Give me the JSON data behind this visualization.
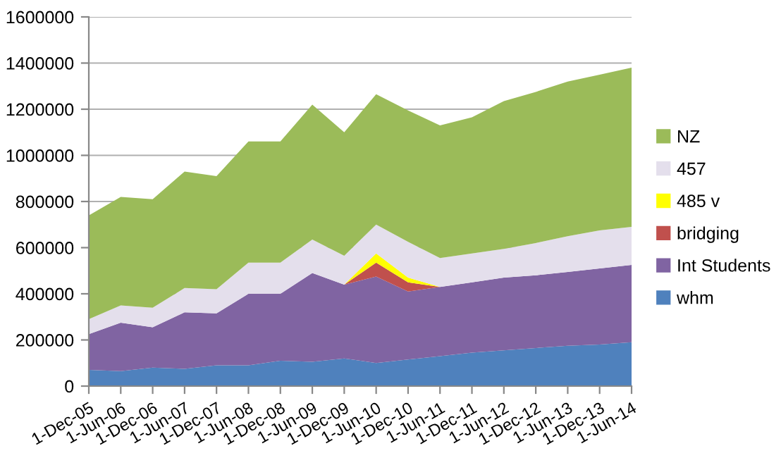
{
  "chart_data": {
    "type": "area",
    "stacked": true,
    "categories": [
      "1-Dec-05",
      "1-Jun-06",
      "1-Dec-06",
      "1-Jun-07",
      "1-Dec-07",
      "1-Jun-08",
      "1-Dec-08",
      "1-Jun-09",
      "1-Dec-09",
      "1-Jun-10",
      "1-Dec-10",
      "1-Jun-11",
      "1-Dec-11",
      "1-Jun-12",
      "1-Dec-12",
      "1-Jun-13",
      "1-Dec-13",
      "1-Jun-14"
    ],
    "series": [
      {
        "name": "whm",
        "color": "#4f81bd",
        "values": [
          70000,
          65000,
          80000,
          75000,
          90000,
          90000,
          110000,
          105000,
          120000,
          100000,
          115000,
          130000,
          145000,
          155000,
          165000,
          175000,
          180000,
          190000
        ]
      },
      {
        "name": "Int Students",
        "color": "#8064a2",
        "values": [
          155000,
          210000,
          175000,
          245000,
          225000,
          310000,
          290000,
          385000,
          320000,
          375000,
          295000,
          300000,
          305000,
          315000,
          315000,
          320000,
          330000,
          335000
        ]
      },
      {
        "name": "bridging",
        "color": "#c0504d",
        "values": [
          0,
          0,
          0,
          0,
          0,
          0,
          0,
          0,
          0,
          60000,
          40000,
          0,
          0,
          0,
          0,
          0,
          0,
          0
        ]
      },
      {
        "name": "485 v",
        "color": "#ffff00",
        "values": [
          0,
          0,
          0,
          0,
          0,
          0,
          0,
          0,
          0,
          40000,
          20000,
          0,
          0,
          0,
          0,
          0,
          0,
          0
        ]
      },
      {
        "name": "457",
        "color": "#e4dfec",
        "values": [
          65000,
          75000,
          85000,
          105000,
          105000,
          135000,
          135000,
          145000,
          125000,
          125000,
          155000,
          125000,
          125000,
          125000,
          140000,
          155000,
          165000,
          165000
        ]
      },
      {
        "name": "NZ",
        "color": "#9bbb59",
        "values": [
          450000,
          470000,
          470000,
          505000,
          490000,
          525000,
          525000,
          585000,
          535000,
          565000,
          570000,
          575000,
          590000,
          640000,
          655000,
          670000,
          675000,
          690000
        ]
      }
    ],
    "ylim": [
      0,
      1600000
    ],
    "yticks": [
      0,
      200000,
      400000,
      600000,
      800000,
      1000000,
      1200000,
      1400000,
      1600000
    ],
    "grid": "y",
    "legend": "right"
  }
}
